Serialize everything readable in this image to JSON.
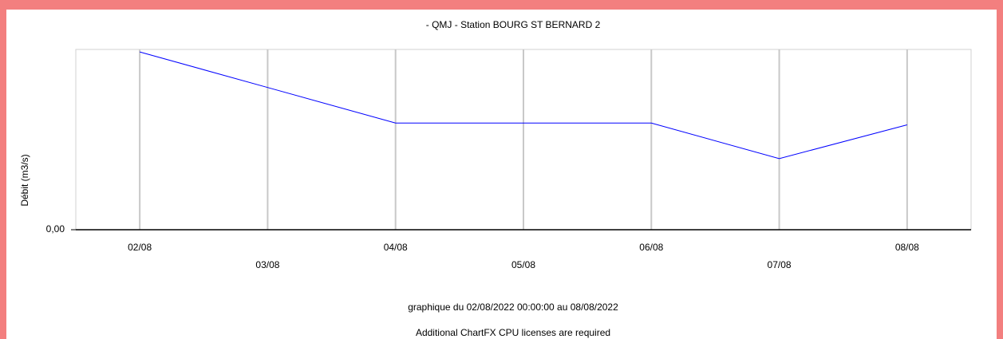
{
  "chart_data": {
    "type": "line",
    "title": "- QMJ - Station BOURG ST BERNARD 2",
    "y_label": "Débit (m3/s)",
    "categories": [
      "02/08",
      "03/08",
      "04/08",
      "05/08",
      "06/08",
      "07/08",
      "08/08"
    ],
    "series": [
      {
        "name": "QMJ",
        "color": "#0000ff",
        "values": [
          5,
          4,
          3,
          3,
          3,
          2,
          2.95
        ]
      }
    ],
    "ylim": [
      0,
      5.07
    ],
    "yticks": [
      {
        "value": 0,
        "label": "0,00"
      }
    ],
    "grid": true,
    "footer": "graphique du 02/08/2022 00:00:00 au 08/08/2022",
    "notice": "Additional ChartFX CPU licenses are required"
  }
}
